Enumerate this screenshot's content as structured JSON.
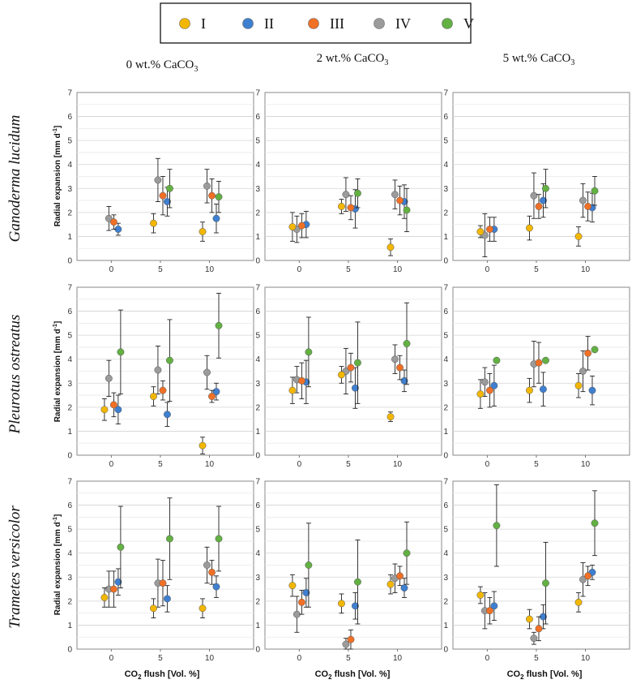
{
  "legend": {
    "entries": [
      {
        "label": "I",
        "color": "#f2b705"
      },
      {
        "label": "II",
        "color": "#3f7fd0"
      },
      {
        "label": "III",
        "color": "#f07026"
      },
      {
        "label": "IV",
        "color": "#9b9b9b"
      },
      {
        "label": "V",
        "color": "#63b043"
      }
    ]
  },
  "columns": [
    {
      "prefix": "0 wt.% CaCO",
      "sub": "3"
    },
    {
      "prefix": "2 wt.% CaCO",
      "sub": "3"
    },
    {
      "prefix": "5 wt.% CaCO",
      "sub": "3"
    }
  ],
  "rows": [
    "Ganoderma lucidum",
    "Pleurotus ostreatus",
    "Trametes versicolor"
  ],
  "axes": {
    "ylabel_main": "Radial expansion [mm d",
    "ylabel_sup": "-1",
    "ylabel_end": "]",
    "xlabel_main": "CO",
    "xlabel_sub": "2",
    "xlabel_end": " flush [Vol. %]",
    "xticks": [
      "0",
      "5",
      "10"
    ],
    "yticks": [
      "0",
      "1",
      "2",
      "3",
      "4",
      "5",
      "6",
      "7"
    ]
  },
  "chart_data": {
    "type": "scatter",
    "x": [
      0,
      5,
      10
    ],
    "series_names": [
      "I",
      "II",
      "III",
      "IV",
      "V"
    ],
    "ylim": [
      0,
      7
    ],
    "xlim": [
      -3.5,
      14.5
    ],
    "grid": true,
    "panels": [
      {
        "row": "Ganoderma lucidum",
        "column": "0 wt.% CaCO3",
        "values": {
          "I": [
            null,
            1.55,
            1.2
          ],
          "II": [
            1.3,
            2.45,
            1.75
          ],
          "III": [
            1.6,
            2.7,
            2.7
          ],
          "IV": [
            1.75,
            3.35,
            3.1
          ],
          "V": [
            null,
            3.0,
            2.65
          ]
        },
        "errors": {
          "I": [
            null,
            0.4,
            0.4
          ],
          "II": [
            0.25,
            0.6,
            0.6
          ],
          "III": [
            0.3,
            0.8,
            0.7
          ],
          "IV": [
            0.5,
            0.9,
            0.7
          ],
          "V": [
            null,
            0.8,
            0.65
          ]
        }
      },
      {
        "row": "Ganoderma lucidum",
        "column": "2 wt.% CaCO3",
        "values": {
          "I": [
            1.4,
            2.25,
            0.55
          ],
          "II": [
            1.5,
            2.15,
            2.45
          ],
          "III": [
            1.45,
            2.2,
            2.5
          ],
          "IV": [
            1.3,
            2.75,
            2.75
          ],
          "V": [
            null,
            2.8,
            2.1
          ]
        },
        "errors": {
          "I": [
            0.6,
            0.3,
            0.35
          ],
          "II": [
            0.55,
            0.8,
            0.7
          ],
          "III": [
            0.5,
            0.5,
            0.6
          ],
          "IV": [
            0.55,
            0.7,
            0.6
          ],
          "V": [
            null,
            0.6,
            0.9
          ]
        }
      },
      {
        "row": "Ganoderma lucidum",
        "column": "5 wt.% CaCO3",
        "values": {
          "I": [
            1.2,
            1.35,
            1.0
          ],
          "II": [
            1.3,
            2.5,
            2.2
          ],
          "III": [
            1.3,
            2.25,
            2.25
          ],
          "IV": [
            1.05,
            2.7,
            2.5
          ],
          "V": [
            null,
            3.0,
            2.9
          ]
        },
        "errors": {
          "I": [
            0.25,
            0.5,
            0.4
          ],
          "II": [
            0.5,
            0.7,
            0.6
          ],
          "III": [
            0.5,
            0.5,
            0.6
          ],
          "IV": [
            0.9,
            0.95,
            0.7
          ],
          "V": [
            null,
            0.8,
            0.6
          ]
        }
      },
      {
        "row": "Pleurotus ostreatus",
        "column": "0 wt.% CaCO3",
        "values": {
          "I": [
            1.9,
            2.45,
            0.4
          ],
          "II": [
            1.9,
            1.7,
            2.65
          ],
          "III": [
            2.1,
            2.7,
            2.45
          ],
          "IV": [
            3.2,
            3.55,
            3.45
          ],
          "V": [
            4.3,
            3.95,
            5.4
          ]
        },
        "errors": {
          "I": [
            0.45,
            0.4,
            0.35
          ],
          "II": [
            0.6,
            0.5,
            0.35
          ],
          "III": [
            0.5,
            0.4,
            0.25
          ],
          "IV": [
            0.75,
            1.0,
            0.7
          ],
          "V": [
            1.75,
            1.7,
            1.35
          ]
        }
      },
      {
        "row": "Pleurotus ostreatus",
        "column": "2 wt.% CaCO3",
        "values": {
          "I": [
            2.7,
            3.35,
            1.6
          ],
          "II": [
            3.05,
            2.8,
            3.1
          ],
          "III": [
            3.1,
            3.65,
            3.65
          ],
          "IV": [
            3.15,
            3.5,
            4.0
          ],
          "V": [
            4.3,
            3.85,
            4.65
          ]
        },
        "errors": {
          "I": [
            0.55,
            0.35,
            0.2
          ],
          "II": [
            0.9,
            0.85,
            0.45
          ],
          "III": [
            0.75,
            0.6,
            0.5
          ],
          "IV": [
            0.55,
            0.95,
            0.6
          ],
          "V": [
            1.45,
            1.7,
            1.7
          ]
        }
      },
      {
        "row": "Pleurotus ostreatus",
        "column": "5 wt.% CaCO3",
        "values": {
          "I": [
            2.55,
            2.7,
            2.9
          ],
          "II": [
            2.9,
            2.75,
            2.7
          ],
          "III": [
            2.7,
            3.85,
            4.25
          ],
          "IV": [
            3.05,
            3.8,
            3.5
          ],
          "V": [
            3.95,
            3.95,
            4.4
          ]
        },
        "errors": {
          "I": [
            0.6,
            0.5,
            0.5
          ],
          "II": [
            0.85,
            0.7,
            0.6
          ],
          "III": [
            0.7,
            0.85,
            0.7
          ],
          "IV": [
            0.6,
            0.95,
            0.85
          ],
          "V": [
            null,
            null,
            null
          ]
        }
      },
      {
        "row": "Trametes versicolor",
        "column": "0 wt.% CaCO3",
        "values": {
          "I": [
            2.15,
            1.7,
            1.7
          ],
          "II": [
            2.8,
            2.1,
            2.6
          ],
          "III": [
            2.5,
            2.75,
            3.2
          ],
          "IV": [
            2.5,
            2.75,
            3.5
          ],
          "V": [
            4.25,
            4.6,
            4.6
          ]
        },
        "errors": {
          "I": [
            0.4,
            0.4,
            0.4
          ],
          "II": [
            0.55,
            0.55,
            0.45
          ],
          "III": [
            0.75,
            0.95,
            0.5
          ],
          "IV": [
            0.75,
            1.0,
            0.75
          ],
          "V": [
            1.7,
            1.7,
            1.35
          ]
        }
      },
      {
        "row": "Trametes versicolor",
        "column": "2 wt.% CaCO3",
        "values": {
          "I": [
            2.65,
            1.9,
            2.7
          ],
          "II": [
            2.35,
            1.8,
            2.55
          ],
          "III": [
            1.95,
            0.4,
            3.05
          ],
          "IV": [
            1.45,
            0.2,
            2.95
          ],
          "V": [
            3.5,
            2.8,
            4.0
          ]
        },
        "errors": {
          "I": [
            0.45,
            0.4,
            0.4
          ],
          "II": [
            0.6,
            0.55,
            0.4
          ],
          "III": [
            0.5,
            0.4,
            0.4
          ],
          "IV": [
            0.75,
            0.25,
            0.6
          ],
          "V": [
            1.75,
            1.75,
            1.3
          ]
        }
      },
      {
        "row": "Trametes versicolor",
        "column": "5 wt.% CaCO3",
        "values": {
          "I": [
            2.25,
            1.25,
            1.95
          ],
          "II": [
            1.8,
            1.35,
            3.2
          ],
          "III": [
            1.6,
            0.85,
            3.05
          ],
          "IV": [
            1.6,
            0.45,
            2.9
          ],
          "V": [
            5.15,
            2.75,
            5.25
          ]
        },
        "errors": {
          "I": [
            0.35,
            0.4,
            0.4
          ],
          "II": [
            0.6,
            0.5,
            0.3
          ],
          "III": [
            0.55,
            0.5,
            0.4
          ],
          "IV": [
            0.75,
            0.25,
            0.7
          ],
          "V": [
            1.7,
            1.7,
            1.35
          ]
        }
      }
    ]
  }
}
